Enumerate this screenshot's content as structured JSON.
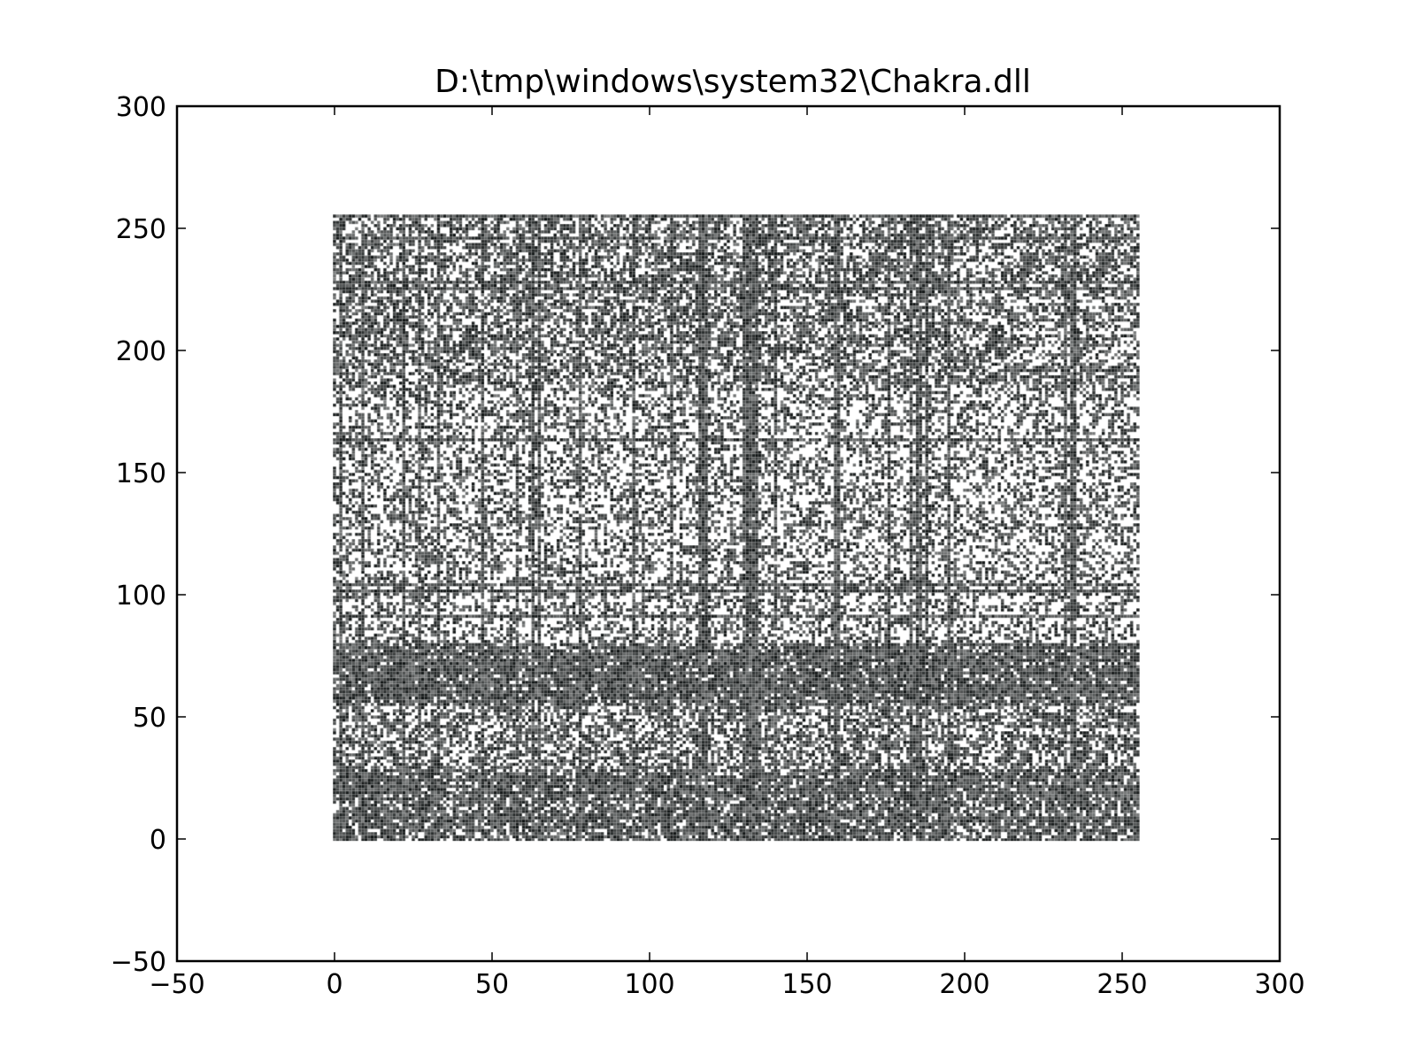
{
  "chart_data": {
    "type": "scatter",
    "title": "D:\\tmp\\windows\\system32\\Chakra.dll",
    "xlabel": "",
    "ylabel": "",
    "xlim": [
      -50,
      300
    ],
    "ylim": [
      -50,
      300
    ],
    "x_ticks": [
      -50,
      0,
      50,
      100,
      150,
      200,
      250,
      300
    ],
    "y_ticks": [
      -50,
      0,
      50,
      100,
      150,
      200,
      250,
      300
    ],
    "x_tick_labels": [
      "−50",
      "0",
      "50",
      "100",
      "150",
      "200",
      "250",
      "300"
    ],
    "y_tick_labels": [
      "−50",
      "0",
      "50",
      "100",
      "150",
      "200",
      "250",
      "300"
    ],
    "grid": false,
    "legend": "none",
    "point_cloud": {
      "description_of_values": "byte-pair scatter; every integer x in [0,255] against every integer y in [0,255]",
      "x_range": [
        0,
        255
      ],
      "y_range": [
        0,
        255
      ],
      "marker_color": "#101414",
      "dense_columns_x": [
        2,
        9,
        22,
        27,
        33,
        47,
        58,
        63,
        65,
        78,
        95,
        107,
        116,
        117,
        118,
        130,
        131,
        132,
        133,
        134,
        140,
        159,
        160,
        176,
        183,
        185,
        186,
        188,
        195,
        232,
        234,
        235
      ],
      "dense_rows_y": [
        0,
        2,
        5,
        10,
        18,
        24,
        32,
        46,
        48,
        56,
        64,
        72,
        74,
        76,
        104,
        106,
        108,
        110,
        112,
        114,
        116,
        128,
        136,
        138,
        184,
        232,
        234,
        248,
        255
      ]
    }
  }
}
